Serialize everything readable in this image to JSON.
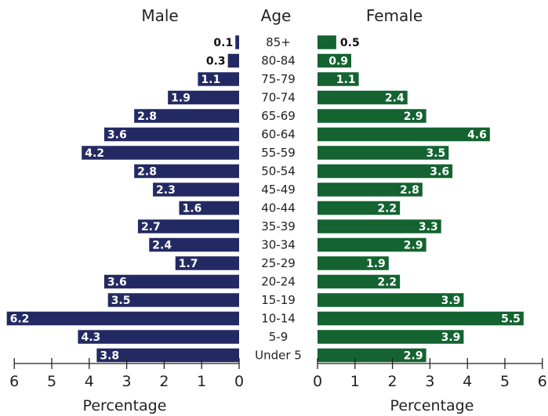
{
  "colors": {
    "male": "#232a63",
    "female": "#146331",
    "axis": "#222222",
    "label_inside": "#ffffff",
    "label_outside": "#111111"
  },
  "chart_data": {
    "type": "bar",
    "orientation": "horizontal",
    "layout": "population-pyramid",
    "center_label": "Age",
    "categories": [
      "85+",
      "80-84",
      "75-79",
      "70-74",
      "65-69",
      "60-64",
      "55-59",
      "50-54",
      "45-49",
      "40-44",
      "35-39",
      "30-34",
      "25-29",
      "20-24",
      "15-19",
      "10-14",
      "5-9",
      "Under 5"
    ],
    "series": [
      {
        "name": "Male",
        "values": [
          0.1,
          0.3,
          1.1,
          1.9,
          2.8,
          3.6,
          4.2,
          2.8,
          2.3,
          1.6,
          2.7,
          2.4,
          1.7,
          3.6,
          3.5,
          6.2,
          4.3,
          3.8
        ]
      },
      {
        "name": "Female",
        "values": [
          0.5,
          0.9,
          1.1,
          2.4,
          2.9,
          4.6,
          3.5,
          3.6,
          2.8,
          2.2,
          3.3,
          2.9,
          1.9,
          2.2,
          3.9,
          5.5,
          3.9,
          2.9
        ]
      }
    ],
    "xlabel": "Percentage",
    "xlim": [
      0,
      6
    ],
    "xticks": [
      "0",
      "1",
      "2",
      "3",
      "4",
      "5",
      "6"
    ],
    "data_labels": true,
    "legend": "none",
    "grid": false
  }
}
